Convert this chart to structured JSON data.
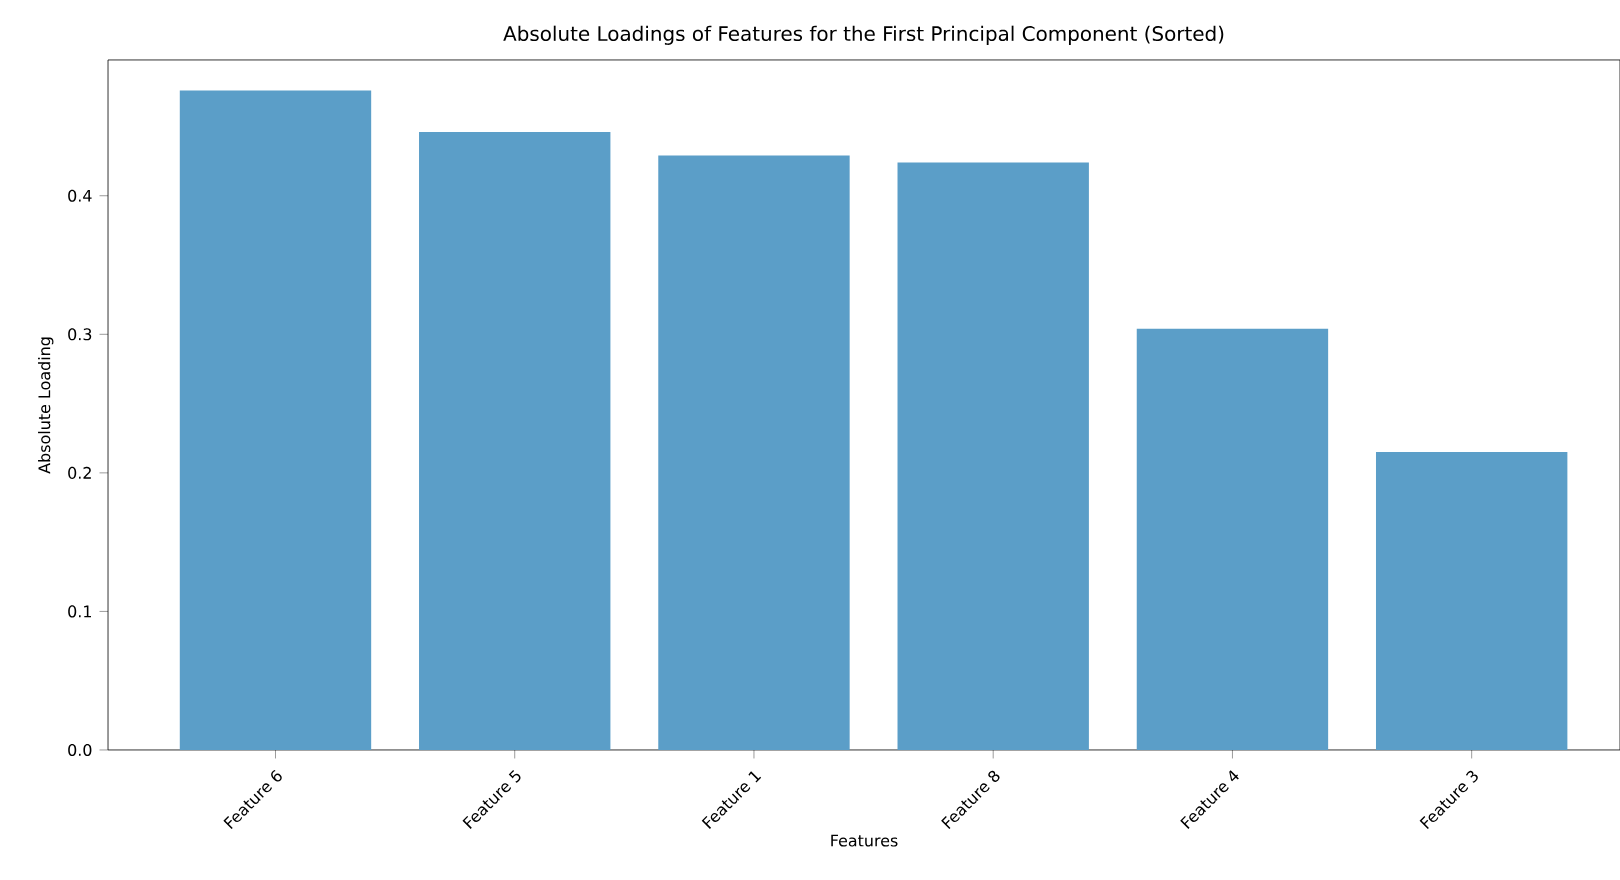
{
  "chart_data": {
    "type": "bar",
    "title": "Absolute Loadings of Features for the First Principal Component (Sorted)",
    "xlabel": "Features",
    "ylabel": "Absolute Loading",
    "categories": [
      "Feature 6",
      "Feature 5",
      "Feature 1",
      "Feature 8",
      "Feature 4",
      "Feature 3"
    ],
    "values": [
      0.476,
      0.446,
      0.429,
      0.424,
      0.304,
      0.215
    ],
    "color": "#5b9ec8",
    "ylim": [
      0,
      0.498
    ],
    "yticks": [
      {
        "value": 0,
        "label": "0.0"
      },
      0.1,
      0.2,
      0.3,
      0.4
    ],
    "grid": false
  }
}
